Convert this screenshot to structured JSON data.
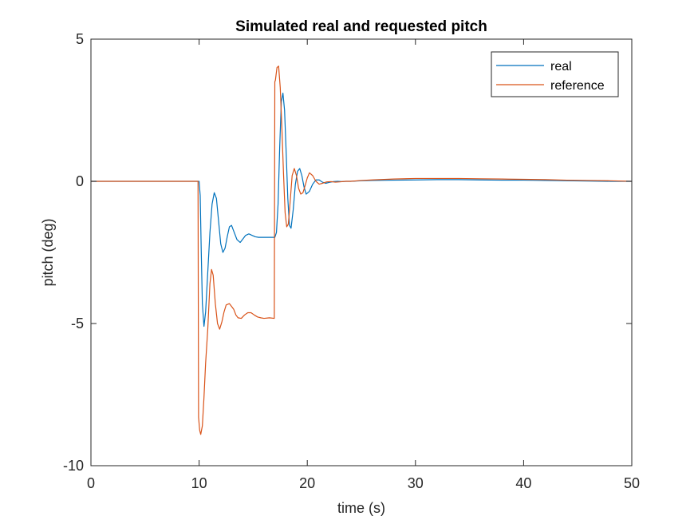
{
  "chart_data": {
    "type": "line",
    "title": "Simulated real and requested pitch",
    "xlabel": "time (s)",
    "ylabel": "pitch (deg)",
    "xlim": [
      0,
      50
    ],
    "ylim": [
      -10,
      5
    ],
    "xticks": [
      0,
      10,
      20,
      30,
      40,
      50
    ],
    "xtick_labels": [
      "0",
      "10",
      "20",
      "30",
      "40",
      "50"
    ],
    "yticks": [
      -10,
      -5,
      0,
      5
    ],
    "ytick_labels": [
      "-10",
      "-5",
      "0",
      "5"
    ],
    "grid": false,
    "box": true,
    "legend_position": "top-right",
    "series": [
      {
        "name": "real",
        "color": "#0072BD",
        "x": [
          0,
          9.9,
          10.0,
          10.1,
          10.2,
          10.3,
          10.45,
          10.6,
          10.8,
          11.0,
          11.2,
          11.4,
          11.6,
          11.8,
          12.0,
          12.2,
          12.4,
          12.6,
          12.8,
          13.0,
          13.2,
          13.5,
          13.8,
          14.0,
          14.3,
          14.6,
          14.9,
          15.2,
          15.5,
          16.0,
          16.5,
          17.0,
          17.15,
          17.3,
          17.45,
          17.6,
          17.75,
          17.9,
          18.05,
          18.2,
          18.35,
          18.5,
          18.7,
          18.9,
          19.1,
          19.3,
          19.5,
          19.7,
          19.9,
          20.2,
          20.5,
          20.8,
          21.1,
          21.4,
          21.7,
          22.0,
          22.4,
          22.8,
          23.2,
          23.6,
          24.0,
          25,
          26,
          28,
          30,
          32,
          34,
          36,
          38,
          40,
          42,
          44,
          46,
          48,
          50
        ],
        "values": [
          0,
          0,
          0,
          -0.5,
          -2.5,
          -4.3,
          -5.1,
          -4.6,
          -3.2,
          -1.8,
          -0.8,
          -0.4,
          -0.6,
          -1.4,
          -2.2,
          -2.5,
          -2.35,
          -1.95,
          -1.6,
          -1.55,
          -1.75,
          -2.05,
          -2.15,
          -2.05,
          -1.9,
          -1.85,
          -1.9,
          -1.95,
          -1.97,
          -1.97,
          -1.97,
          -1.97,
          -1.8,
          -0.8,
          1.2,
          2.8,
          3.1,
          2.5,
          1.0,
          -0.6,
          -1.55,
          -1.65,
          -1.0,
          -0.1,
          0.35,
          0.45,
          0.2,
          -0.2,
          -0.45,
          -0.35,
          -0.1,
          0.05,
          0.05,
          -0.03,
          -0.07,
          -0.04,
          -0.01,
          0.0,
          -0.01,
          0.0,
          0.0,
          0.02,
          0.03,
          0.04,
          0.05,
          0.06,
          0.06,
          0.05,
          0.04,
          0.04,
          0.03,
          0.02,
          0.01,
          0.0,
          0.0
        ]
      },
      {
        "name": "reference",
        "color": "#D95319",
        "x": [
          0,
          9.9,
          9.95,
          10.05,
          10.15,
          10.3,
          10.45,
          10.6,
          10.8,
          11.0,
          11.15,
          11.3,
          11.5,
          11.7,
          11.9,
          12.1,
          12.3,
          12.5,
          12.8,
          13.0,
          13.2,
          13.4,
          13.6,
          13.9,
          14.2,
          14.5,
          14.8,
          15.1,
          15.4,
          15.7,
          16.0,
          16.5,
          16.95,
          17.0,
          17.05,
          17.2,
          17.35,
          17.5,
          17.65,
          17.8,
          17.95,
          18.1,
          18.25,
          18.4,
          18.6,
          18.8,
          19.0,
          19.2,
          19.4,
          19.6,
          19.8,
          20.0,
          20.2,
          20.5,
          20.8,
          21.1,
          21.4,
          21.8,
          22.2,
          22.6,
          23.0,
          23.5,
          24.0,
          25,
          26,
          28,
          30,
          32,
          34,
          36,
          38,
          40,
          42,
          44,
          46,
          48,
          50
        ],
        "values": [
          0,
          0,
          -8.3,
          -8.75,
          -8.9,
          -8.6,
          -7.6,
          -6.4,
          -5.2,
          -3.6,
          -3.1,
          -3.3,
          -4.3,
          -5.0,
          -5.2,
          -4.95,
          -4.6,
          -4.35,
          -4.3,
          -4.4,
          -4.5,
          -4.7,
          -4.8,
          -4.82,
          -4.7,
          -4.62,
          -4.62,
          -4.7,
          -4.77,
          -4.8,
          -4.82,
          -4.8,
          -4.82,
          3.5,
          3.55,
          4.0,
          4.05,
          3.3,
          1.9,
          0.3,
          -1.1,
          -1.6,
          -1.5,
          -0.8,
          0.2,
          0.45,
          0.2,
          -0.25,
          -0.45,
          -0.4,
          -0.15,
          0.12,
          0.3,
          0.2,
          0.0,
          -0.1,
          -0.07,
          -0.02,
          -0.01,
          -0.03,
          -0.02,
          0.0,
          0.0,
          0.03,
          0.05,
          0.08,
          0.1,
          0.1,
          0.1,
          0.09,
          0.08,
          0.07,
          0.06,
          0.04,
          0.03,
          0.02,
          0.0
        ]
      }
    ]
  }
}
